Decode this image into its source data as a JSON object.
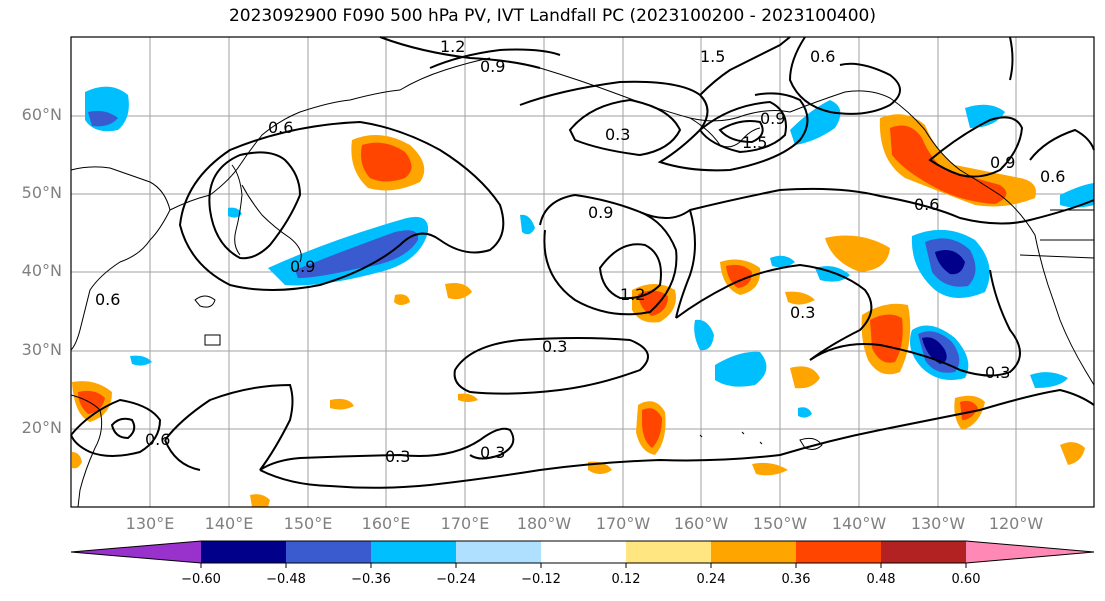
{
  "title": "2023092900 F090 500 hPa PV, IVT Landfall PC (2023100200 - 2023100400)",
  "lat_labels": [
    "60°N",
    "50°N",
    "40°N",
    "30°N",
    "20°N"
  ],
  "lon_labels": [
    "130°E",
    "140°E",
    "150°E",
    "160°E",
    "170°E",
    "180°W",
    "170°W",
    "160°W",
    "150°W",
    "140°W",
    "130°W",
    "120°W"
  ],
  "contour_labels": [
    "1.2",
    "0.9",
    "1.5",
    "0.6",
    "0.6",
    "0.3",
    "0.9",
    "1.5",
    "0.9",
    "0.6",
    "0.9",
    "0.6",
    "1.2",
    "0.3",
    "0.3",
    "0.3",
    "0.3",
    "0.3",
    "0.6",
    "0.6",
    "0.9"
  ],
  "colorbar": {
    "ticks": [
      "−0.60",
      "−0.48",
      "−0.36",
      "−0.24",
      "−0.12",
      "0.12",
      "0.24",
      "0.36",
      "0.48",
      "0.60"
    ],
    "colors": [
      "#9932cc",
      "#00008b",
      "#3a5bd0",
      "#00bfff",
      "#b0e0ff",
      "#ffffff",
      "#ffe680",
      "#ffa500",
      "#ff4500",
      "#b22222",
      "#ff88b4"
    ]
  }
}
